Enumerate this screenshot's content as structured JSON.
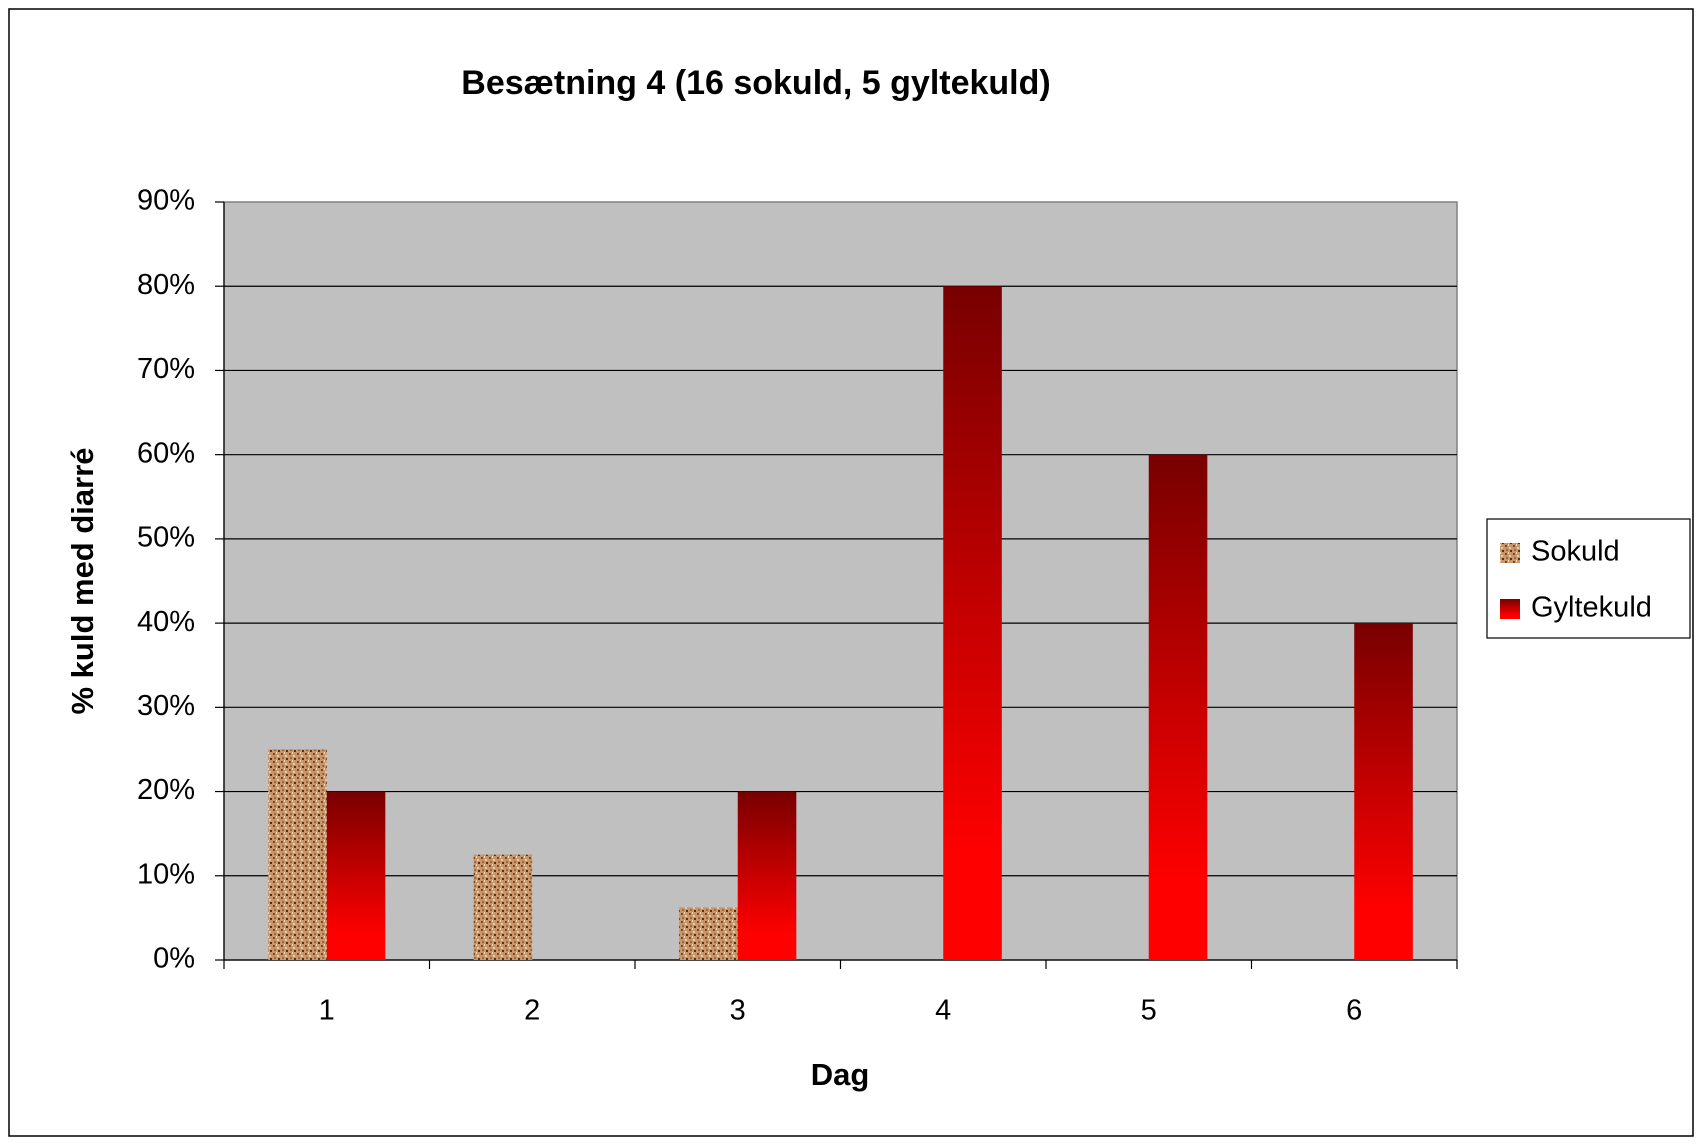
{
  "chart_data": {
    "type": "bar",
    "title": "Besætning 4 (16 sokuld, 5 gyltekuld)",
    "x_label": "Dag",
    "y_label": "% kuld med diarré",
    "categories": [
      "1",
      "2",
      "3",
      "4",
      "5",
      "6"
    ],
    "series": [
      {
        "name": "Sokuld",
        "color": "#c8966a",
        "values": [
          25,
          12.5,
          6.25,
          0,
          0,
          0
        ]
      },
      {
        "name": "Gyltekuld",
        "color": "#ff0000",
        "values": [
          20,
          0,
          20,
          80,
          60,
          40
        ]
      }
    ],
    "ylim": [
      0,
      90
    ],
    "yticks": [
      {
        "value": 0,
        "label": "0%"
      },
      {
        "value": 10,
        "label": "10%"
      },
      {
        "value": 20,
        "label": "20%"
      },
      {
        "value": 30,
        "label": "30%"
      },
      {
        "value": 40,
        "label": "40%"
      },
      {
        "value": 50,
        "label": "50%"
      },
      {
        "value": 60,
        "label": "60%"
      },
      {
        "value": 70,
        "label": "70%"
      },
      {
        "value": 80,
        "label": "80%"
      },
      {
        "value": 90,
        "label": "90%"
      }
    ],
    "grid": true,
    "legend": "right"
  }
}
